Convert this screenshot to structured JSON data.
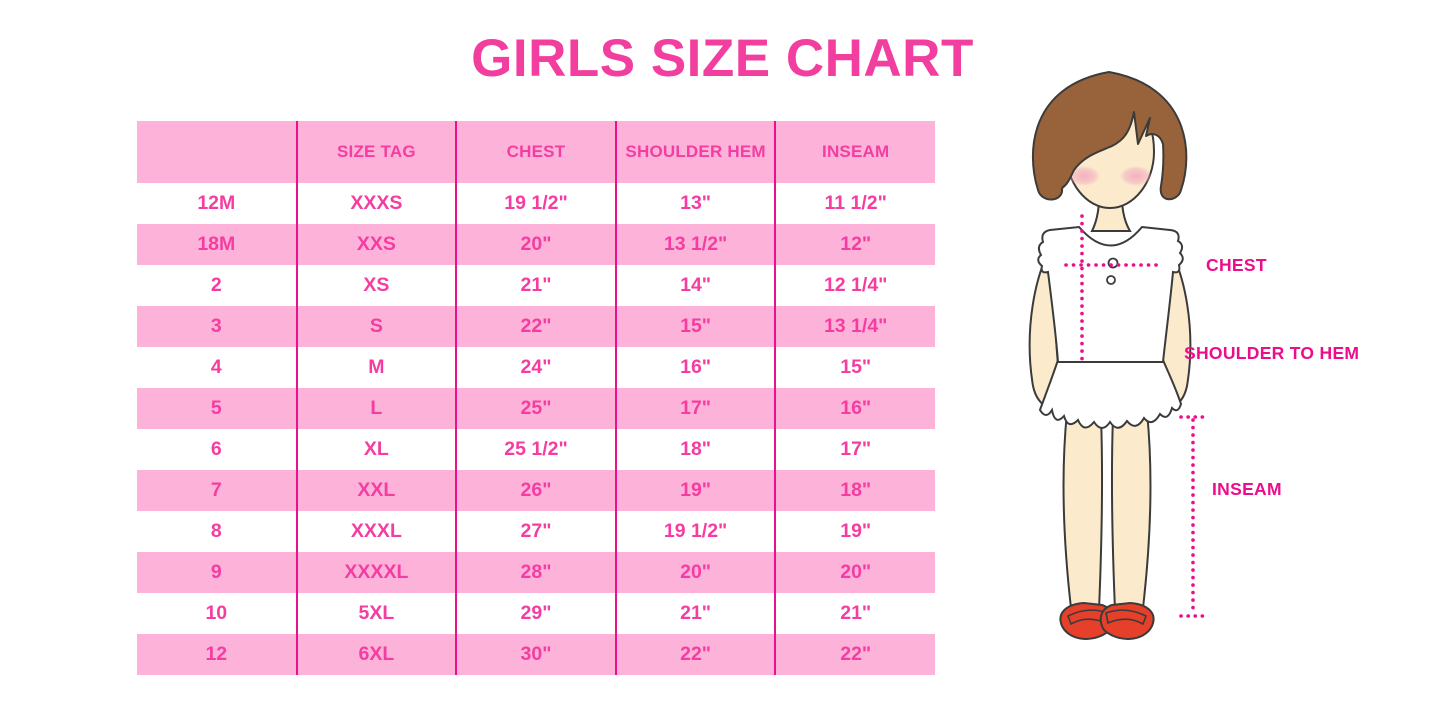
{
  "title": "GIRLS SIZE CHART",
  "table": {
    "headers": [
      "",
      "SIZE TAG",
      "CHEST",
      "SHOULDER HEM",
      "INSEAM"
    ],
    "rows": [
      [
        "12M",
        "XXXS",
        "19 1/2\"",
        "13\"",
        "11 1/2\""
      ],
      [
        "18M",
        "XXS",
        "20\"",
        "13 1/2\"",
        "12\""
      ],
      [
        "2",
        "XS",
        "21\"",
        "14\"",
        "12 1/4\""
      ],
      [
        "3",
        "S",
        "22\"",
        "15\"",
        "13 1/4\""
      ],
      [
        "4",
        "M",
        "24\"",
        "16\"",
        "15\""
      ],
      [
        "5",
        "L",
        "25\"",
        "17\"",
        "16\""
      ],
      [
        "6",
        "XL",
        "25 1/2\"",
        "18\"",
        "17\""
      ],
      [
        "7",
        "XXL",
        "26\"",
        "19\"",
        "18\""
      ],
      [
        "8",
        "XXXL",
        "27\"",
        "19 1/2\"",
        "19\""
      ],
      [
        "9",
        "XXXXL",
        "28\"",
        "20\"",
        "20\""
      ],
      [
        "10",
        "5XL",
        "29\"",
        "21\"",
        "21\""
      ],
      [
        "12",
        "6XL",
        "30\"",
        "22\"",
        "22\""
      ]
    ]
  },
  "diagram": {
    "chest_label": "CHEST",
    "shoulder_to_hem_label": "SHOULDER TO HEM",
    "inseam_label": "INSEAM"
  },
  "colors": {
    "title_pink": "#F23F9F",
    "table_text_pink": "#F53DA1",
    "row_pink": "#FCB2D9",
    "grid_line": "#E9128C",
    "label_magenta": "#EC0C8C",
    "hair_brown": "#98633A",
    "skin": "#FBEACB",
    "blush": "#F4AFC2",
    "outline": "#3B3B3B",
    "shoe_red": "#E7402A"
  }
}
